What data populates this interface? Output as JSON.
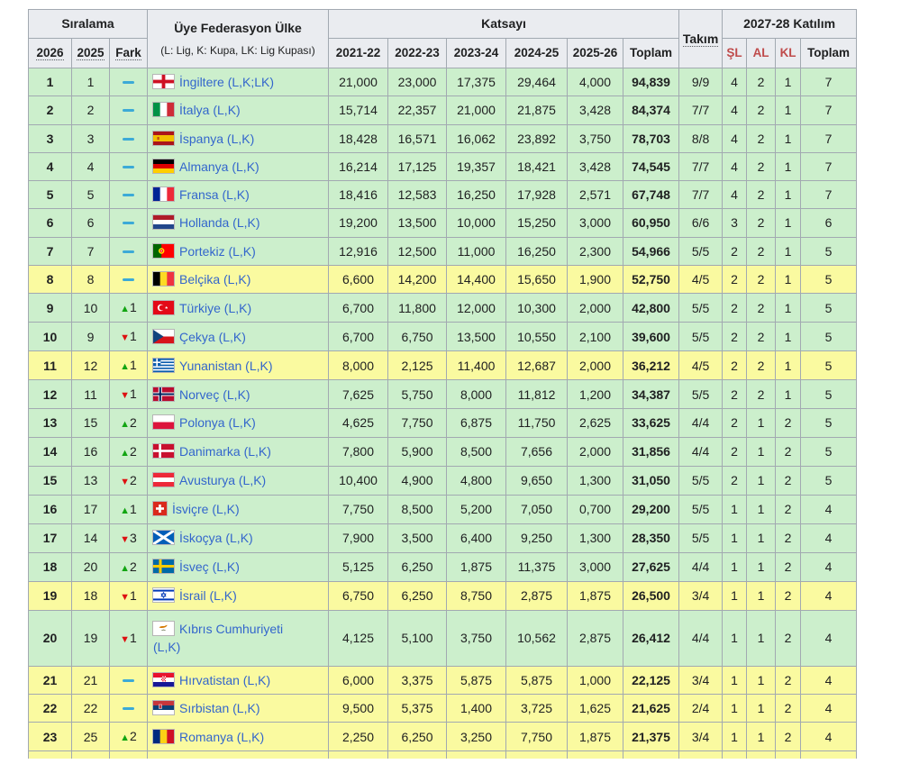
{
  "table": {
    "headers": {
      "siralama": "Sıralama",
      "rank_2026": "2026",
      "rank_2025": "2025",
      "fark": "Fark",
      "country_title": "Üye Federasyon Ülke",
      "country_subtitle": "(L: Lig, K: Kupa, LK: Lig Kupası)",
      "katsayi": "Katsayı",
      "seasons": [
        "2021-22",
        "2022-23",
        "2023-24",
        "2024-25",
        "2025-26"
      ],
      "toplam": "Toplam",
      "takim": "Takım",
      "katilim": "2027-28 Katılım",
      "katilim_cols": [
        "ŞL",
        "AL",
        "KL"
      ],
      "katilim_toplam": "Toplam"
    },
    "colors": {
      "green_row": "#ccefcc",
      "yellow_row": "#fafaa0",
      "header_bg": "#eaecf0",
      "border": "#a2a9b1",
      "link_blue": "#3366cc",
      "red_header": "#bf4b4b",
      "up_arrow": "#12a512",
      "down_arrow": "#dd1111",
      "steady_dash": "#3caad7"
    },
    "rows": [
      {
        "rank_2026": "1",
        "rank_2025": "1",
        "change": "steady",
        "change_amount": "",
        "flag": "england",
        "country": "İngiltere (L,K;LK)",
        "values": [
          "21,000",
          "23,000",
          "17,375",
          "29,464",
          "4,000"
        ],
        "total": "94,839",
        "teams": "9/9",
        "participation": [
          "4",
          "2",
          "1",
          "7"
        ],
        "highlight": "green"
      },
      {
        "rank_2026": "2",
        "rank_2025": "2",
        "change": "steady",
        "change_amount": "",
        "flag": "italy",
        "country": "İtalya (L,K)",
        "values": [
          "15,714",
          "22,357",
          "21,000",
          "21,875",
          "3,428"
        ],
        "total": "84,374",
        "teams": "7/7",
        "participation": [
          "4",
          "2",
          "1",
          "7"
        ],
        "highlight": "green"
      },
      {
        "rank_2026": "3",
        "rank_2025": "3",
        "change": "steady",
        "change_amount": "",
        "flag": "spain",
        "country": "İspanya (L,K)",
        "values": [
          "18,428",
          "16,571",
          "16,062",
          "23,892",
          "3,750"
        ],
        "total": "78,703",
        "teams": "8/8",
        "participation": [
          "4",
          "2",
          "1",
          "7"
        ],
        "highlight": "green"
      },
      {
        "rank_2026": "4",
        "rank_2025": "4",
        "change": "steady",
        "change_amount": "",
        "flag": "germany",
        "country": "Almanya (L,K)",
        "values": [
          "16,214",
          "17,125",
          "19,357",
          "18,421",
          "3,428"
        ],
        "total": "74,545",
        "teams": "7/7",
        "participation": [
          "4",
          "2",
          "1",
          "7"
        ],
        "highlight": "green"
      },
      {
        "rank_2026": "5",
        "rank_2025": "5",
        "change": "steady",
        "change_amount": "",
        "flag": "france",
        "country": "Fransa (L,K)",
        "values": [
          "18,416",
          "12,583",
          "16,250",
          "17,928",
          "2,571"
        ],
        "total": "67,748",
        "teams": "7/7",
        "participation": [
          "4",
          "2",
          "1",
          "7"
        ],
        "highlight": "green"
      },
      {
        "rank_2026": "6",
        "rank_2025": "6",
        "change": "steady",
        "change_amount": "",
        "flag": "netherlands",
        "country": "Hollanda (L,K)",
        "values": [
          "19,200",
          "13,500",
          "10,000",
          "15,250",
          "3,000"
        ],
        "total": "60,950",
        "teams": "6/6",
        "participation": [
          "3",
          "2",
          "1",
          "6"
        ],
        "highlight": "green"
      },
      {
        "rank_2026": "7",
        "rank_2025": "7",
        "change": "steady",
        "change_amount": "",
        "flag": "portugal",
        "country": "Portekiz (L,K)",
        "values": [
          "12,916",
          "12,500",
          "11,000",
          "16,250",
          "2,300"
        ],
        "total": "54,966",
        "teams": "5/5",
        "participation": [
          "2",
          "2",
          "1",
          "5"
        ],
        "highlight": "green"
      },
      {
        "rank_2026": "8",
        "rank_2025": "8",
        "change": "steady",
        "change_amount": "",
        "flag": "belgium",
        "country": "Belçika (L,K)",
        "values": [
          "6,600",
          "14,200",
          "14,400",
          "15,650",
          "1,900"
        ],
        "total": "52,750",
        "teams": "4/5",
        "participation": [
          "2",
          "2",
          "1",
          "5"
        ],
        "highlight": "yellow"
      },
      {
        "rank_2026": "9",
        "rank_2025": "10",
        "change": "up",
        "change_amount": "1",
        "flag": "turkey",
        "country": "Türkiye (L,K)",
        "values": [
          "6,700",
          "11,800",
          "12,000",
          "10,300",
          "2,000"
        ],
        "total": "42,800",
        "teams": "5/5",
        "participation": [
          "2",
          "2",
          "1",
          "5"
        ],
        "highlight": "green"
      },
      {
        "rank_2026": "10",
        "rank_2025": "9",
        "change": "down",
        "change_amount": "1",
        "flag": "czechia",
        "country": "Çekya (L,K)",
        "values": [
          "6,700",
          "6,750",
          "13,500",
          "10,550",
          "2,100"
        ],
        "total": "39,600",
        "teams": "5/5",
        "participation": [
          "2",
          "2",
          "1",
          "5"
        ],
        "highlight": "green"
      },
      {
        "rank_2026": "11",
        "rank_2025": "12",
        "change": "up",
        "change_amount": "1",
        "flag": "greece",
        "country": "Yunanistan (L,K)",
        "values": [
          "8,000",
          "2,125",
          "11,400",
          "12,687",
          "2,000"
        ],
        "total": "36,212",
        "teams": "4/5",
        "participation": [
          "2",
          "2",
          "1",
          "5"
        ],
        "highlight": "yellow"
      },
      {
        "rank_2026": "12",
        "rank_2025": "11",
        "change": "down",
        "change_amount": "1",
        "flag": "norway",
        "country": "Norveç (L,K)",
        "values": [
          "7,625",
          "5,750",
          "8,000",
          "11,812",
          "1,200"
        ],
        "total": "34,387",
        "teams": "5/5",
        "participation": [
          "2",
          "2",
          "1",
          "5"
        ],
        "highlight": "green"
      },
      {
        "rank_2026": "13",
        "rank_2025": "15",
        "change": "up",
        "change_amount": "2",
        "flag": "poland",
        "country": "Polonya (L,K)",
        "values": [
          "4,625",
          "7,750",
          "6,875",
          "11,750",
          "2,625"
        ],
        "total": "33,625",
        "teams": "4/4",
        "participation": [
          "2",
          "1",
          "2",
          "5"
        ],
        "highlight": "green"
      },
      {
        "rank_2026": "14",
        "rank_2025": "16",
        "change": "up",
        "change_amount": "2",
        "flag": "denmark",
        "country": "Danimarka (L,K)",
        "values": [
          "7,800",
          "5,900",
          "8,500",
          "7,656",
          "2,000"
        ],
        "total": "31,856",
        "teams": "4/4",
        "participation": [
          "2",
          "1",
          "2",
          "5"
        ],
        "highlight": "green"
      },
      {
        "rank_2026": "15",
        "rank_2025": "13",
        "change": "down",
        "change_amount": "2",
        "flag": "austria",
        "country": "Avusturya (L,K)",
        "values": [
          "10,400",
          "4,900",
          "4,800",
          "9,650",
          "1,300"
        ],
        "total": "31,050",
        "teams": "5/5",
        "participation": [
          "2",
          "1",
          "2",
          "5"
        ],
        "highlight": "green"
      },
      {
        "rank_2026": "16",
        "rank_2025": "17",
        "change": "up",
        "change_amount": "1",
        "flag": "switzerland",
        "country": "İsviçre (L,K)",
        "values": [
          "7,750",
          "8,500",
          "5,200",
          "7,050",
          "0,700"
        ],
        "total": "29,200",
        "teams": "5/5",
        "participation": [
          "1",
          "1",
          "2",
          "4"
        ],
        "highlight": "green"
      },
      {
        "rank_2026": "17",
        "rank_2025": "14",
        "change": "down",
        "change_amount": "3",
        "flag": "scotland",
        "country": "İskoçya (L,K)",
        "values": [
          "7,900",
          "3,500",
          "6,400",
          "9,250",
          "1,300"
        ],
        "total": "28,350",
        "teams": "5/5",
        "participation": [
          "1",
          "1",
          "2",
          "4"
        ],
        "highlight": "green"
      },
      {
        "rank_2026": "18",
        "rank_2025": "20",
        "change": "up",
        "change_amount": "2",
        "flag": "sweden",
        "country": "İsveç (L,K)",
        "values": [
          "5,125",
          "6,250",
          "1,875",
          "11,375",
          "3,000"
        ],
        "total": "27,625",
        "teams": "4/4",
        "participation": [
          "1",
          "1",
          "2",
          "4"
        ],
        "highlight": "green"
      },
      {
        "rank_2026": "19",
        "rank_2025": "18",
        "change": "down",
        "change_amount": "1",
        "flag": "israel",
        "country": "İsrail (L,K)",
        "values": [
          "6,750",
          "6,250",
          "8,750",
          "2,875",
          "1,875"
        ],
        "total": "26,500",
        "teams": "3/4",
        "participation": [
          "1",
          "1",
          "2",
          "4"
        ],
        "highlight": "yellow"
      },
      {
        "rank_2026": "20",
        "rank_2025": "19",
        "change": "down",
        "change_amount": "1",
        "flag": "cyprus",
        "country": "Kıbrıs Cumhuriyeti (L,K)",
        "wrap": true,
        "values": [
          "4,125",
          "5,100",
          "3,750",
          "10,562",
          "2,875"
        ],
        "total": "26,412",
        "teams": "4/4",
        "participation": [
          "1",
          "1",
          "2",
          "4"
        ],
        "highlight": "green"
      },
      {
        "rank_2026": "21",
        "rank_2025": "21",
        "change": "steady",
        "change_amount": "",
        "flag": "croatia",
        "country": "Hırvatistan (L,K)",
        "values": [
          "6,000",
          "3,375",
          "5,875",
          "5,875",
          "1,000"
        ],
        "total": "22,125",
        "teams": "3/4",
        "participation": [
          "1",
          "1",
          "2",
          "4"
        ],
        "highlight": "yellow"
      },
      {
        "rank_2026": "22",
        "rank_2025": "22",
        "change": "steady",
        "change_amount": "",
        "flag": "serbia",
        "country": "Sırbistan (L,K)",
        "values": [
          "9,500",
          "5,375",
          "1,400",
          "3,725",
          "1,625"
        ],
        "total": "21,625",
        "teams": "2/4",
        "participation": [
          "1",
          "1",
          "2",
          "4"
        ],
        "highlight": "yellow"
      },
      {
        "rank_2026": "23",
        "rank_2025": "25",
        "change": "up",
        "change_amount": "2",
        "flag": "romania",
        "country": "Romanya (L,K)",
        "values": [
          "2,250",
          "6,250",
          "3,250",
          "7,750",
          "1,875"
        ],
        "total": "21,375",
        "teams": "3/4",
        "participation": [
          "1",
          "1",
          "2",
          "4"
        ],
        "highlight": "yellow"
      }
    ],
    "partial_bottom_row": {
      "visible": true,
      "highlight": "yellow"
    }
  }
}
